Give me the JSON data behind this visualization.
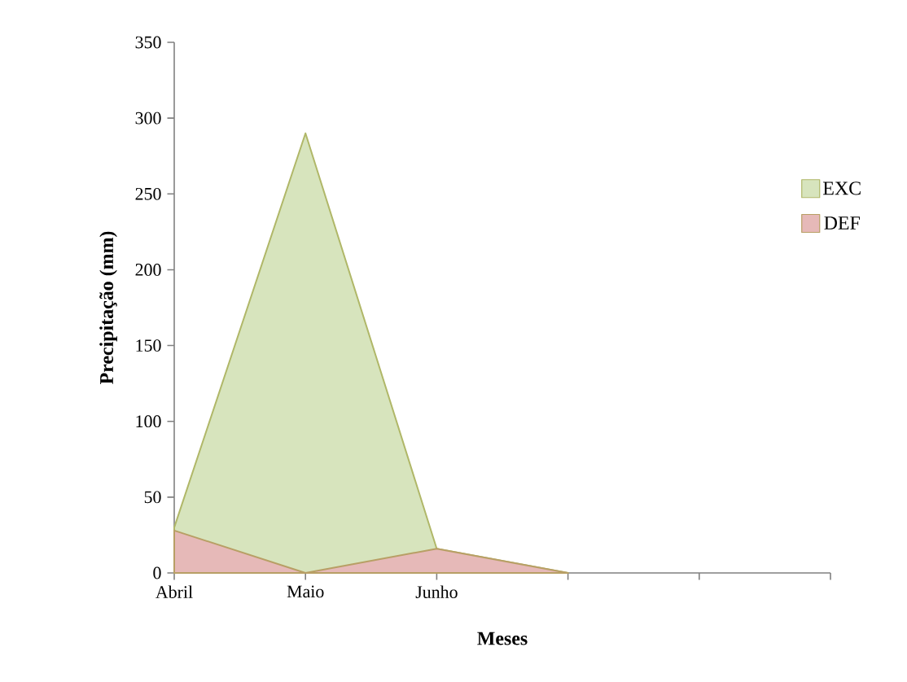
{
  "chart_data": {
    "type": "area",
    "xlabel": "**Meses**",
    "ylabel": "**Precipitação  (mm)**",
    "categories": [
      "Abril",
      "Maio",
      "Junho",
      null,
      null,
      null
    ],
    "series": [
      {
        "name": "EXC",
        "color": "#d7e4bd",
        "values": [
          30,
          290,
          16,
          0,
          null,
          null
        ]
      },
      {
        "name": "DEF",
        "color": "#e6b9b8",
        "values": [
          28,
          0,
          16,
          0,
          null,
          null
        ]
      }
    ],
    "ylim": [
      0,
      350
    ],
    "yticks": [
      0,
      50,
      100,
      150,
      200,
      250,
      300,
      350
    ],
    "legend": "right"
  }
}
